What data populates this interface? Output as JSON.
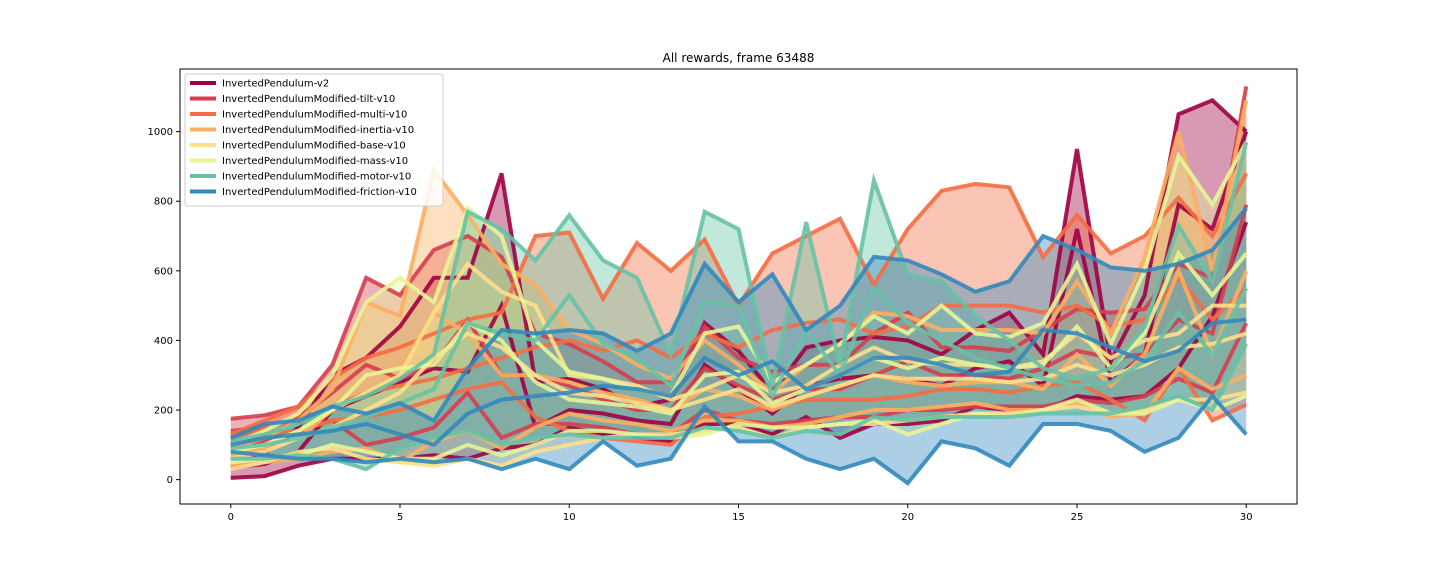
{
  "chart_data": {
    "type": "line",
    "title": "All rewards, frame 63488",
    "xlabel": "",
    "ylabel": "",
    "xlim": [
      -1.5,
      31.5
    ],
    "ylim": [
      -70,
      1180
    ],
    "xticks": [
      0,
      5,
      10,
      15,
      20,
      25,
      30
    ],
    "yticks": [
      0,
      200,
      400,
      600,
      800,
      1000
    ],
    "legend_position": "top-left",
    "grid": false,
    "x": [
      0,
      1,
      2,
      3,
      4,
      5,
      6,
      7,
      8,
      9,
      10,
      11,
      12,
      13,
      14,
      15,
      16,
      17,
      18,
      19,
      20,
      21,
      22,
      23,
      24,
      25,
      26,
      27,
      28,
      29,
      30
    ],
    "series": [
      {
        "name": "InvertedPendulum-v2",
        "color": "#9e0142",
        "upper": [
          60,
          75,
          150,
          300,
          350,
          440,
          580,
          580,
          880,
          280,
          290,
          260,
          210,
          230,
          450,
          370,
          250,
          380,
          400,
          410,
          400,
          360,
          430,
          480,
          360,
          950,
          340,
          530,
          1050,
          1090,
          1000
        ],
        "mean": [
          35,
          45,
          80,
          200,
          240,
          280,
          320,
          310,
          500,
          150,
          200,
          190,
          170,
          160,
          330,
          260,
          190,
          270,
          290,
          300,
          290,
          270,
          320,
          340,
          270,
          720,
          280,
          360,
          790,
          720,
          1000
        ],
        "lower": [
          5,
          10,
          40,
          60,
          60,
          60,
          70,
          60,
          90,
          100,
          150,
          130,
          120,
          110,
          160,
          160,
          130,
          180,
          120,
          160,
          160,
          170,
          210,
          200,
          200,
          240,
          230,
          240,
          320,
          470,
          740
        ]
      },
      {
        "name": "InvertedPendulumModified-tilt-v10",
        "color": "#d53e4f",
        "upper": [
          175,
          185,
          210,
          330,
          580,
          530,
          660,
          700,
          640,
          420,
          390,
          340,
          280,
          280,
          440,
          350,
          310,
          330,
          330,
          420,
          480,
          380,
          380,
          370,
          430,
          490,
          480,
          490,
          620,
          580,
          1130
        ],
        "mean": [
          140,
          150,
          180,
          250,
          330,
          290,
          330,
          460,
          300,
          300,
          270,
          230,
          200,
          200,
          320,
          270,
          230,
          260,
          260,
          300,
          340,
          300,
          300,
          290,
          320,
          370,
          350,
          360,
          460,
          420,
          790
        ],
        "lower": [
          100,
          110,
          140,
          170,
          100,
          120,
          150,
          250,
          120,
          160,
          160,
          150,
          130,
          130,
          200,
          170,
          160,
          170,
          180,
          180,
          200,
          200,
          210,
          210,
          210,
          230,
          220,
          240,
          290,
          250,
          450
        ]
      },
      {
        "name": "InvertedPendulumModified-multi-v10",
        "color": "#f46d43",
        "upper": [
          130,
          170,
          210,
          290,
          350,
          380,
          420,
          460,
          480,
          700,
          710,
          520,
          680,
          600,
          690,
          500,
          650,
          700,
          750,
          560,
          720,
          830,
          850,
          840,
          640,
          760,
          650,
          700,
          810,
          700,
          880
        ],
        "mean": [
          120,
          150,
          170,
          210,
          250,
          270,
          290,
          320,
          350,
          380,
          400,
          370,
          400,
          350,
          420,
          380,
          430,
          450,
          460,
          420,
          440,
          500,
          500,
          500,
          480,
          500,
          440,
          460,
          580,
          460,
          550
        ],
        "lower": [
          100,
          130,
          140,
          170,
          180,
          200,
          230,
          260,
          280,
          180,
          140,
          120,
          110,
          100,
          180,
          190,
          210,
          230,
          230,
          230,
          240,
          260,
          260,
          250,
          270,
          280,
          230,
          170,
          320,
          170,
          215
        ]
      },
      {
        "name": "InvertedPendulumModified-inertia-v10",
        "color": "#fdae61",
        "upper": [
          90,
          120,
          170,
          260,
          510,
          470,
          890,
          760,
          620,
          560,
          430,
          390,
          330,
          290,
          400,
          330,
          250,
          330,
          390,
          480,
          470,
          430,
          430,
          430,
          420,
          570,
          420,
          640,
          1000,
          600,
          1090
        ],
        "mean": [
          70,
          90,
          120,
          200,
          300,
          320,
          480,
          420,
          300,
          300,
          280,
          250,
          230,
          200,
          260,
          240,
          200,
          240,
          270,
          300,
          280,
          270,
          280,
          280,
          260,
          360,
          270,
          360,
          600,
          360,
          600
        ],
        "lower": [
          40,
          50,
          60,
          80,
          90,
          50,
          110,
          140,
          90,
          150,
          190,
          170,
          160,
          140,
          170,
          170,
          150,
          160,
          180,
          200,
          200,
          210,
          220,
          200,
          200,
          220,
          180,
          190,
          320,
          260,
          300
        ]
      },
      {
        "name": "InvertedPendulumModified-base-v10",
        "color": "#fee08b",
        "upper": [
          80,
          100,
          140,
          200,
          250,
          300,
          480,
          620,
          540,
          500,
          300,
          290,
          270,
          230,
          260,
          300,
          250,
          270,
          330,
          380,
          340,
          330,
          330,
          320,
          340,
          420,
          350,
          400,
          420,
          500,
          500
        ],
        "mean": [
          60,
          80,
          120,
          150,
          200,
          250,
          350,
          420,
          380,
          300,
          250,
          240,
          220,
          200,
          230,
          260,
          210,
          240,
          270,
          300,
          290,
          290,
          290,
          280,
          290,
          330,
          300,
          330,
          380,
          390,
          420
        ],
        "lower": [
          30,
          50,
          80,
          90,
          60,
          50,
          40,
          60,
          40,
          80,
          100,
          120,
          130,
          130,
          140,
          150,
          120,
          150,
          160,
          160,
          170,
          180,
          190,
          190,
          200,
          210,
          190,
          200,
          230,
          230,
          250
        ]
      },
      {
        "name": "InvertedPendulumModified-mass-v10",
        "color": "#e6f598",
        "upper": [
          100,
          140,
          190,
          300,
          510,
          580,
          510,
          780,
          700,
          400,
          310,
          290,
          260,
          240,
          420,
          440,
          280,
          330,
          390,
          470,
          420,
          500,
          420,
          410,
          450,
          620,
          390,
          600,
          930,
          790,
          970
        ],
        "mean": [
          80,
          100,
          140,
          200,
          300,
          320,
          330,
          450,
          400,
          280,
          230,
          220,
          210,
          190,
          300,
          310,
          220,
          260,
          300,
          350,
          320,
          350,
          330,
          320,
          330,
          440,
          320,
          420,
          650,
          530,
          650
        ],
        "lower": [
          50,
          60,
          70,
          100,
          80,
          60,
          60,
          100,
          70,
          100,
          140,
          140,
          130,
          120,
          130,
          160,
          150,
          150,
          160,
          170,
          130,
          160,
          190,
          180,
          200,
          230,
          190,
          190,
          230,
          200,
          240
        ]
      },
      {
        "name": "InvertedPendulumModified-motor-v10",
        "color": "#66c2a5",
        "upper": [
          110,
          130,
          160,
          210,
          240,
          290,
          360,
          770,
          720,
          630,
          760,
          630,
          580,
          360,
          770,
          720,
          270,
          740,
          330,
          860,
          590,
          570,
          470,
          400,
          320,
          290,
          320,
          440,
          730,
          570,
          970
        ],
        "mean": [
          90,
          100,
          120,
          150,
          180,
          220,
          260,
          450,
          420,
          400,
          530,
          390,
          350,
          270,
          510,
          500,
          240,
          430,
          300,
          550,
          450,
          400,
          350,
          320,
          290,
          270,
          280,
          340,
          480,
          360,
          550
        ],
        "lower": [
          60,
          60,
          70,
          60,
          30,
          90,
          120,
          140,
          100,
          120,
          130,
          120,
          120,
          120,
          150,
          140,
          120,
          140,
          130,
          180,
          170,
          180,
          180,
          180,
          190,
          190,
          190,
          210,
          240,
          200,
          390
        ]
      },
      {
        "name": "InvertedPendulumModified-friction-v10",
        "color": "#3288bd",
        "upper": [
          120,
          160,
          170,
          210,
          190,
          220,
          170,
          320,
          430,
          420,
          430,
          420,
          370,
          420,
          620,
          510,
          590,
          430,
          500,
          640,
          630,
          590,
          540,
          570,
          700,
          660,
          610,
          600,
          620,
          660,
          780
        ],
        "mean": [
          100,
          120,
          130,
          140,
          160,
          130,
          100,
          190,
          230,
          240,
          250,
          270,
          260,
          240,
          350,
          300,
          340,
          260,
          300,
          350,
          350,
          330,
          300,
          310,
          430,
          420,
          380,
          340,
          370,
          450,
          460
        ],
        "lower": [
          80,
          70,
          60,
          60,
          50,
          60,
          50,
          60,
          30,
          60,
          30,
          110,
          40,
          60,
          210,
          110,
          110,
          60,
          30,
          60,
          -10,
          110,
          90,
          40,
          160,
          160,
          140,
          80,
          120,
          240,
          130
        ]
      }
    ]
  }
}
